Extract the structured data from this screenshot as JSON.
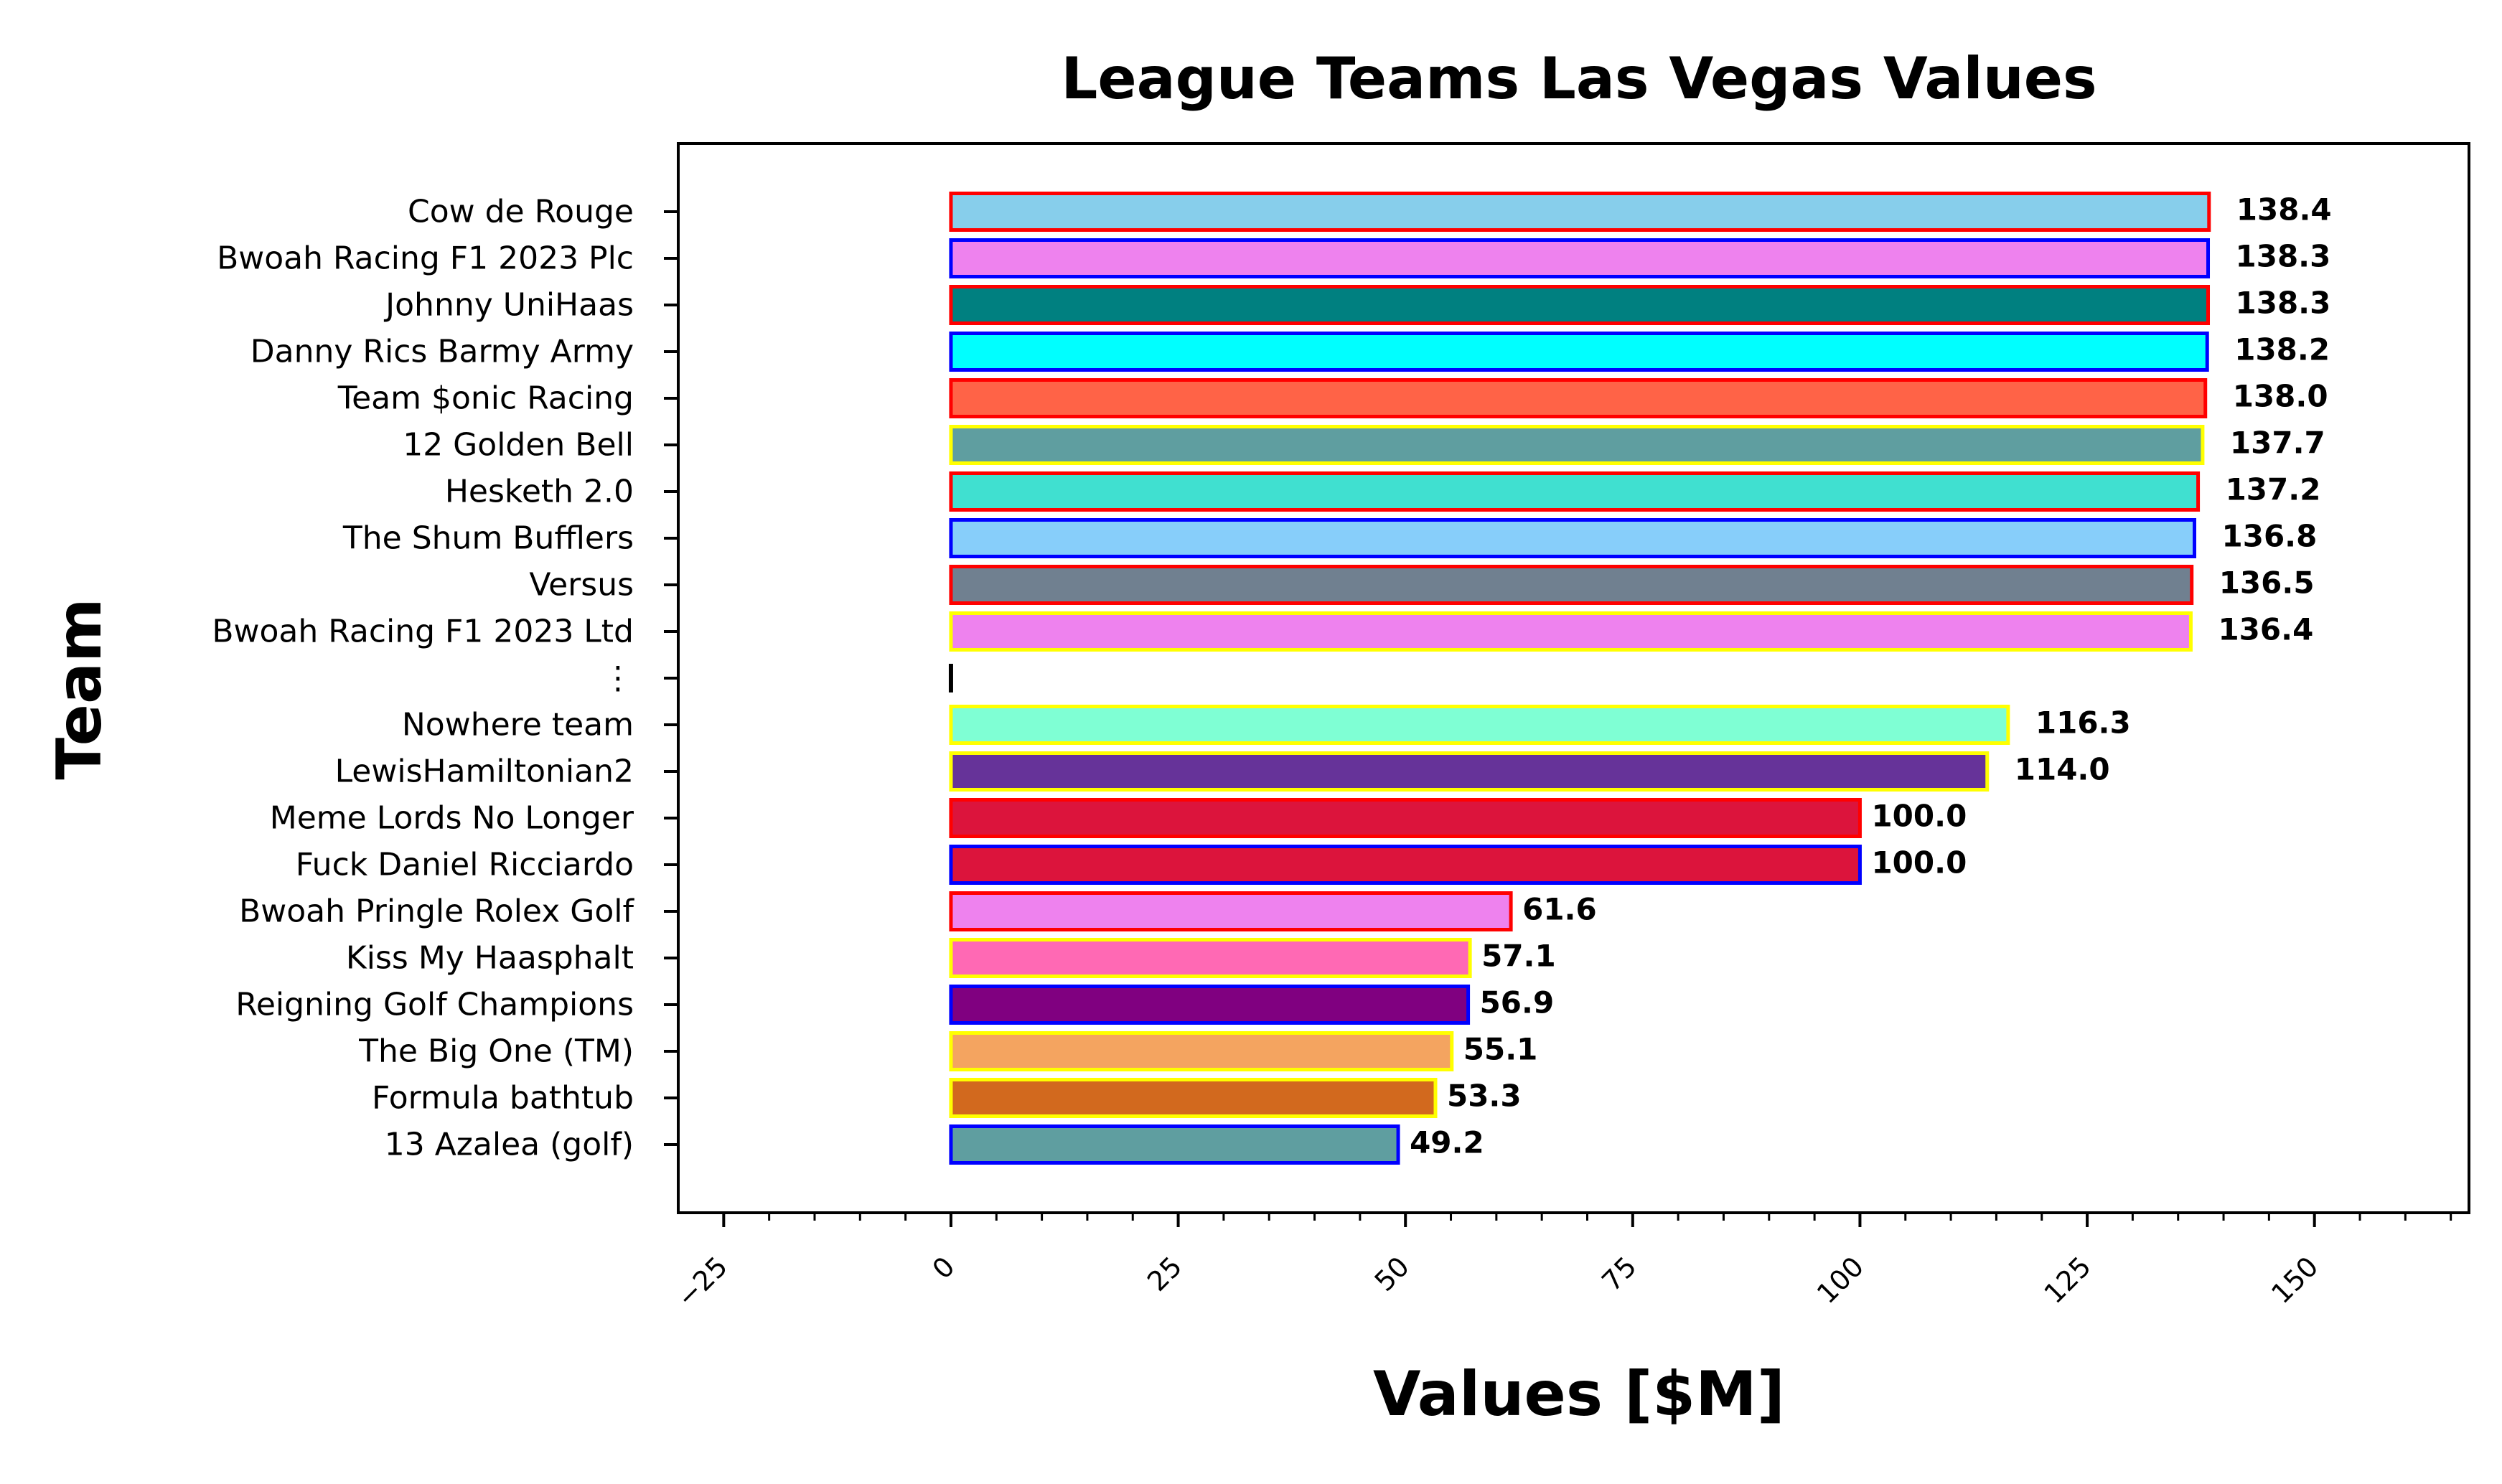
{
  "chart_data": {
    "type": "bar",
    "orientation": "horizontal",
    "title": "League Teams Las Vegas Values",
    "xlabel": "Values [$M]",
    "ylabel": "Team",
    "xlim": [
      -30,
      167
    ],
    "x_ticks": [
      -25,
      0,
      25,
      50,
      75,
      100,
      125,
      150
    ],
    "x_tick_labels": [
      "−25",
      "0",
      "25",
      "50",
      "75",
      "100",
      "125",
      "150"
    ],
    "grid": false,
    "legend": "none",
    "categories": [
      "Cow de Rouge",
      "Bwoah Racing F1 2023 Plc",
      "Johnny UniHaas",
      "Danny Rics Barmy Army",
      "Team $onic Racing",
      "12 Golden Bell",
      "Hesketh 2.0",
      "The Shum Bufflers",
      "Versus",
      "Bwoah Racing F1 2023 Ltd",
      "⋮",
      "Nowhere team",
      "LewisHamiltonian2",
      "Meme Lords No Longer",
      "Fuck Daniel Ricciardo",
      "Bwoah Pringle Rolex Golf",
      "Kiss My Haasphalt",
      "Reigning Golf Champions",
      "The Big One (TM)",
      "Formula bathtub",
      "13 Azalea (golf)"
    ],
    "values": [
      138.4,
      138.3,
      138.3,
      138.2,
      138.0,
      137.7,
      137.2,
      136.8,
      136.5,
      136.4,
      null,
      116.3,
      114.0,
      100.0,
      100.0,
      61.6,
      57.1,
      56.9,
      55.1,
      53.3,
      49.2
    ],
    "value_labels": [
      "138.4",
      "138.3",
      "138.3",
      "138.2",
      "138.0",
      "137.7",
      "137.2",
      "136.8",
      "136.5",
      "136.4",
      "",
      "116.3",
      "114.0",
      "100.0",
      "100.0",
      "61.6",
      "57.1",
      "56.9",
      "55.1",
      "53.3",
      "49.2"
    ],
    "fill_colors": [
      "#87ceeb",
      "#ee82ee",
      "#008080",
      "#00ffff",
      "#ff6347",
      "#5f9ea0",
      "#40e0d0",
      "#87cefa",
      "#708090",
      "#ee82ee",
      "#000000",
      "#7fffd4",
      "#663399",
      "#dc143c",
      "#dc143c",
      "#ee82ee",
      "#ff69b4",
      "#800080",
      "#f4a460",
      "#d2691e",
      "#5f9ea0"
    ],
    "edge_colors": [
      "#ff0000",
      "#0000ff",
      "#ff0000",
      "#0000ff",
      "#ff0000",
      "#ffff00",
      "#ff0000",
      "#0000ff",
      "#ff0000",
      "#ffff00",
      "#000000",
      "#ffff00",
      "#ffff00",
      "#ff0000",
      "#0000ff",
      "#ff0000",
      "#ffff00",
      "#0000ff",
      "#ffff00",
      "#ffff00",
      "#0000ff"
    ]
  }
}
